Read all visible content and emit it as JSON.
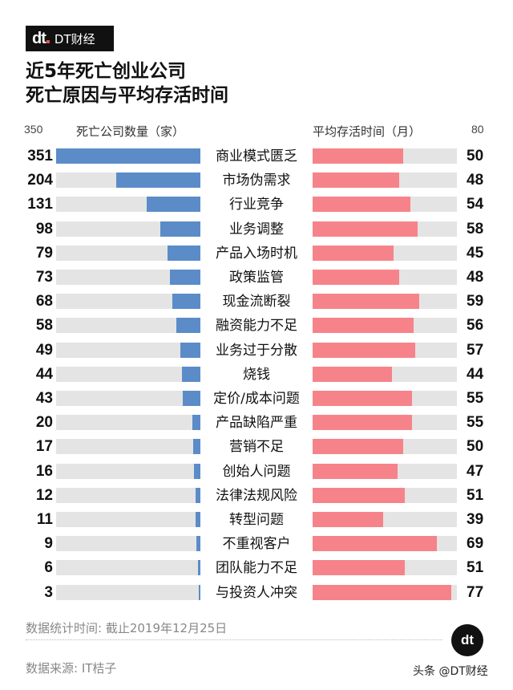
{
  "brand": {
    "logo_mark": "dt",
    "name": "DT财经",
    "accent": "#e8543f"
  },
  "chart_data": {
    "type": "bar",
    "layout": "butterfly",
    "title": "近5年死亡创业公司\n死亡原因与平均存活时间",
    "title_lines": [
      "近5年死亡创业公司",
      "死亡原因与平均存活时间"
    ],
    "categories": [
      "商业模式匮乏",
      "市场伪需求",
      "行业竞争",
      "业务调整",
      "产品入场时机",
      "政策监管",
      "现金流断裂",
      "融资能力不足",
      "业务过于分散",
      "烧钱",
      "定价/成本问题",
      "产品缺陷严重",
      "营销不足",
      "创始人问题",
      "法律法规风险",
      "转型问题",
      "不重视客户",
      "团队能力不足",
      "与投资人冲突"
    ],
    "series": [
      {
        "name": "死亡公司数量（家）",
        "color": "#5b8cc8",
        "max_tick": "350",
        "xlim": [
          0,
          350
        ],
        "values": [
          351,
          204,
          131,
          98,
          79,
          73,
          68,
          58,
          49,
          44,
          43,
          20,
          17,
          16,
          12,
          11,
          9,
          6,
          3
        ]
      },
      {
        "name": "平均存活时间（月）",
        "color": "#f7838a",
        "max_tick": "80",
        "xlim": [
          0,
          80
        ],
        "values": [
          50,
          48,
          54,
          58,
          45,
          48,
          59,
          56,
          57,
          44,
          55,
          55,
          50,
          47,
          51,
          39,
          69,
          51,
          77
        ]
      }
    ],
    "track_color": "#e4e4e4"
  },
  "footer": {
    "stat_time": "数据统计时间: 截止2019年12月25日",
    "source": "数据来源: IT桔子",
    "watermark": "头条 @DT财经"
  }
}
